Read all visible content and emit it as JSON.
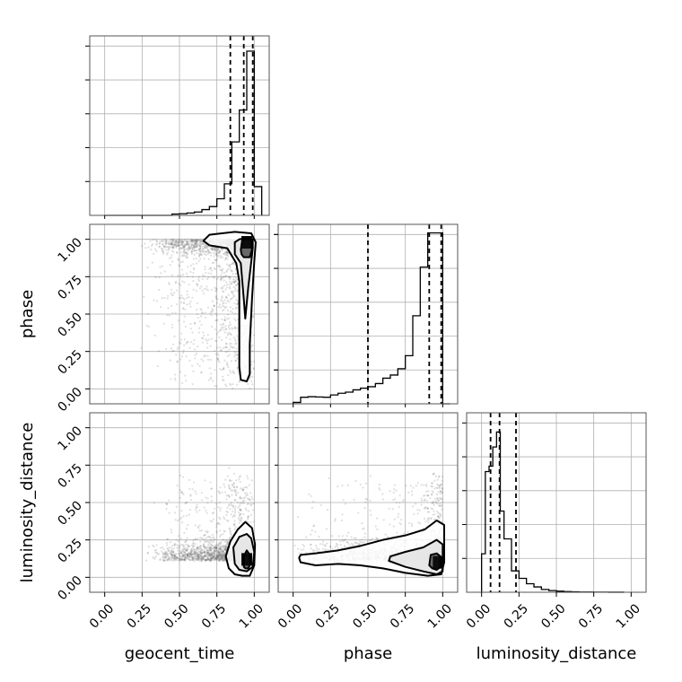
{
  "chart_data": {
    "type": "corner",
    "parameters": [
      "geocent_time",
      "phase",
      "luminosity_distance"
    ],
    "axis_range": [
      -0.1,
      1.1
    ],
    "tick_values": [
      0.0,
      0.25,
      0.5,
      0.75,
      1.0
    ],
    "tick_labels": [
      "0.00",
      "0.25",
      "0.50",
      "0.75",
      "1.00"
    ],
    "grid": true,
    "colors": {
      "line": "#000000",
      "grid": "#b0b0b0",
      "frame": "#555555",
      "scatter": "#6e6e6e"
    },
    "histograms": [
      {
        "parameter": "geocent_time",
        "bin_edges": [
          0.0,
          0.05,
          0.1,
          0.15,
          0.2,
          0.25,
          0.3,
          0.35,
          0.4,
          0.45,
          0.5,
          0.55,
          0.6,
          0.65,
          0.7,
          0.75,
          0.8,
          0.85,
          0.9,
          0.95,
          1.0,
          1.05
        ],
        "counts": [
          0,
          0,
          0,
          0,
          0,
          0,
          0,
          0,
          0,
          0.4,
          0.5,
          0.7,
          1.0,
          1.7,
          2.6,
          4.9,
          9.3,
          21.7,
          31.1,
          48.5,
          8.5
        ],
        "ymax": 53,
        "quantiles": [
          0.84,
          0.93,
          0.99
        ]
      },
      {
        "parameter": "phase",
        "bin_edges": [
          0.0,
          0.05,
          0.1,
          0.15,
          0.2,
          0.25,
          0.3,
          0.35,
          0.4,
          0.45,
          0.5,
          0.55,
          0.6,
          0.65,
          0.7,
          0.75,
          0.8,
          0.85,
          0.9,
          0.95,
          1.0,
          1.05
        ],
        "counts": [
          0.5,
          2.3,
          2.5,
          2.4,
          2.3,
          3.1,
          3.7,
          4.1,
          4.9,
          5.5,
          6.0,
          7.1,
          9.0,
          10.1,
          12.3,
          16.9,
          30.9,
          48.0,
          60.0,
          60.0,
          0
        ],
        "ymax": 63,
        "quantiles": [
          0.5,
          0.91,
          0.99
        ]
      },
      {
        "parameter": "luminosity_distance",
        "bin_edges": [
          0.0,
          0.025,
          0.05,
          0.075,
          0.1,
          0.125,
          0.15,
          0.2,
          0.25,
          0.3,
          0.35,
          0.4,
          0.45,
          0.5,
          0.55,
          0.6,
          0.65,
          0.7,
          0.75,
          0.8,
          0.85,
          0.9,
          0.95
        ],
        "counts": [
          18,
          56.5,
          59,
          68,
          75,
          38,
          25,
          10,
          6.5,
          4,
          2.5,
          1.3,
          0.8,
          0.5,
          0.3,
          0.2,
          0.1,
          0.1,
          0.05,
          0.05,
          0.03,
          0.02
        ],
        "ymax": 84,
        "quantiles": [
          0.06,
          0.12,
          0.23
        ]
      }
    ],
    "contours": [
      {
        "x": "geocent_time",
        "y": "phase",
        "levels": [
          [
            [
              0.91,
              0.93
            ],
            [
              0.92,
              0.999
            ],
            [
              0.96,
              1.0
            ],
            [
              0.98,
              0.999
            ],
            [
              0.985,
              0.93
            ],
            [
              0.97,
              0.88
            ],
            [
              0.93,
              0.88
            ],
            [
              0.915,
              0.9
            ]
          ],
          [
            [
              0.87,
              0.98
            ],
            [
              0.9,
              1.0
            ],
            [
              0.96,
              1.01
            ],
            [
              0.99,
              1.0
            ],
            [
              0.99,
              0.94
            ],
            [
              0.98,
              0.85
            ],
            [
              0.96,
              0.68
            ],
            [
              0.94,
              0.47
            ],
            [
              0.93,
              0.6
            ],
            [
              0.91,
              0.84
            ],
            [
              0.87,
              0.9
            ]
          ],
          [
            [
              0.66,
              0.99
            ],
            [
              0.7,
              1.03
            ],
            [
              0.87,
              1.05
            ],
            [
              0.98,
              1.04
            ],
            [
              1.01,
              0.98
            ],
            [
              1.0,
              0.85
            ],
            [
              0.985,
              0.6
            ],
            [
              0.97,
              0.3
            ],
            [
              0.97,
              0.1
            ],
            [
              0.95,
              0.05
            ],
            [
              0.91,
              0.06
            ],
            [
              0.9,
              0.15
            ],
            [
              0.9,
              0.4
            ],
            [
              0.9,
              0.72
            ],
            [
              0.88,
              0.84
            ],
            [
              0.82,
              0.94
            ],
            [
              0.7,
              0.96
            ]
          ]
        ],
        "peak": [
          0.95,
          0.98
        ]
      },
      {
        "x": "geocent_time",
        "y": "luminosity_distance",
        "levels": [
          [
            [
              0.93,
              0.07
            ],
            [
              0.93,
              0.14
            ],
            [
              0.95,
              0.18
            ],
            [
              0.97,
              0.15
            ],
            [
              0.975,
              0.09
            ],
            [
              0.96,
              0.06
            ],
            [
              0.94,
              0.06
            ]
          ],
          [
            [
              0.87,
              0.09
            ],
            [
              0.86,
              0.2
            ],
            [
              0.9,
              0.27
            ],
            [
              0.95,
              0.29
            ],
            [
              0.98,
              0.26
            ],
            [
              1.0,
              0.17
            ],
            [
              0.99,
              0.07
            ],
            [
              0.95,
              0.04
            ],
            [
              0.9,
              0.05
            ]
          ],
          [
            [
              0.83,
              0.06
            ],
            [
              0.81,
              0.14
            ],
            [
              0.84,
              0.24
            ],
            [
              0.89,
              0.32
            ],
            [
              0.94,
              0.37
            ],
            [
              0.985,
              0.33
            ],
            [
              1.005,
              0.22
            ],
            [
              1.0,
              0.08
            ],
            [
              0.97,
              0.01
            ],
            [
              0.92,
              0.01
            ],
            [
              0.87,
              0.02
            ]
          ]
        ],
        "peak": [
          0.95,
          0.12
        ]
      },
      {
        "x": "phase",
        "y": "luminosity_distance",
        "levels": [
          [
            [
              0.91,
              0.08
            ],
            [
              0.92,
              0.15
            ],
            [
              0.96,
              0.16
            ],
            [
              0.985,
              0.14
            ],
            [
              0.985,
              0.07
            ],
            [
              0.96,
              0.05
            ],
            [
              0.93,
              0.06
            ]
          ],
          [
            [
              0.64,
              0.11
            ],
            [
              0.65,
              0.14
            ],
            [
              0.75,
              0.17
            ],
            [
              0.87,
              0.2
            ],
            [
              0.96,
              0.25
            ],
            [
              1.0,
              0.22
            ],
            [
              1.0,
              0.04
            ],
            [
              0.96,
              0.02
            ],
            [
              0.87,
              0.04
            ],
            [
              0.75,
              0.07
            ]
          ],
          [
            [
              0.04,
              0.13
            ],
            [
              0.05,
              0.15
            ],
            [
              0.15,
              0.16
            ],
            [
              0.3,
              0.18
            ],
            [
              0.45,
              0.21
            ],
            [
              0.6,
              0.25
            ],
            [
              0.75,
              0.28
            ],
            [
              0.88,
              0.32
            ],
            [
              0.96,
              0.38
            ],
            [
              1.01,
              0.35
            ],
            [
              1.01,
              0.1
            ],
            [
              0.99,
              0.02
            ],
            [
              0.9,
              0.01
            ],
            [
              0.75,
              0.03
            ],
            [
              0.6,
              0.06
            ],
            [
              0.45,
              0.08
            ],
            [
              0.3,
              0.09
            ],
            [
              0.15,
              0.08
            ],
            [
              0.05,
              0.1
            ]
          ]
        ],
        "peak": [
          0.97,
          0.1
        ]
      }
    ]
  }
}
